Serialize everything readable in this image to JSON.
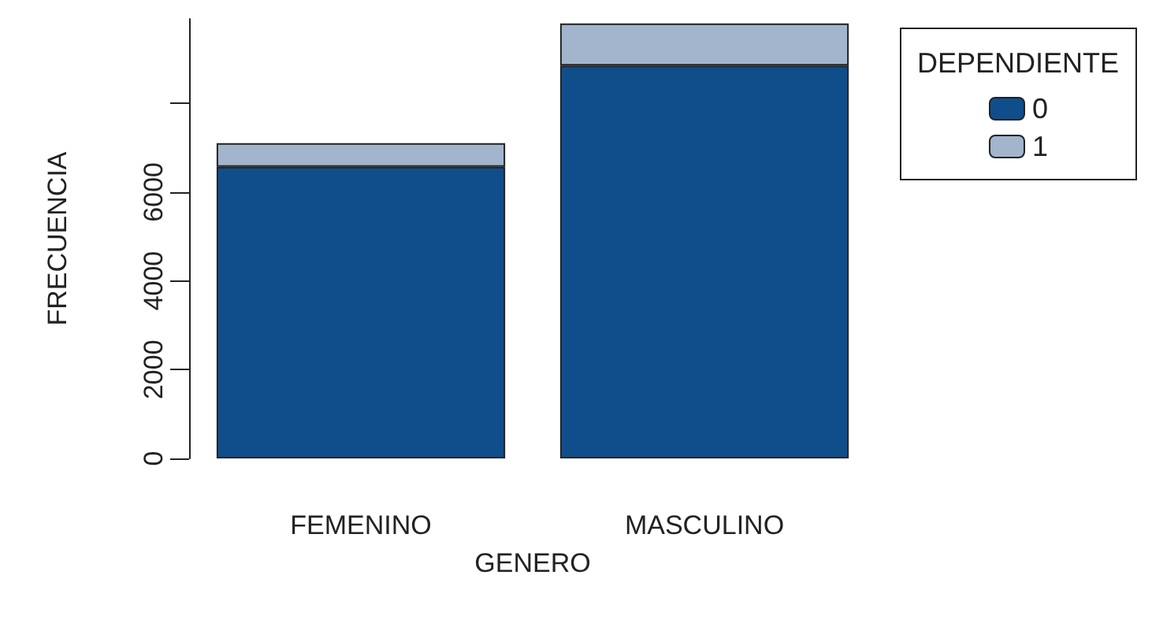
{
  "chart_data": {
    "type": "bar",
    "stacked": true,
    "xlabel": "GENERO",
    "ylabel": "FRECUENCIA",
    "legend_title": "DEPENDIENTE",
    "legend": "top right",
    "categories": [
      "FEMENINO",
      "MASCULINO"
    ],
    "series": [
      {
        "name": "0",
        "color": "#104e8b",
        "values": [
          6570,
          8850
        ]
      },
      {
        "name": "1",
        "color": "#a2b5cd",
        "values": [
          530,
          950
        ]
      }
    ],
    "ylim": [
      0,
      9900
    ],
    "yticks": [
      0,
      2000,
      4000,
      6000,
      {
        "value": 8000,
        "label": null
      }
    ],
    "grid": false
  }
}
